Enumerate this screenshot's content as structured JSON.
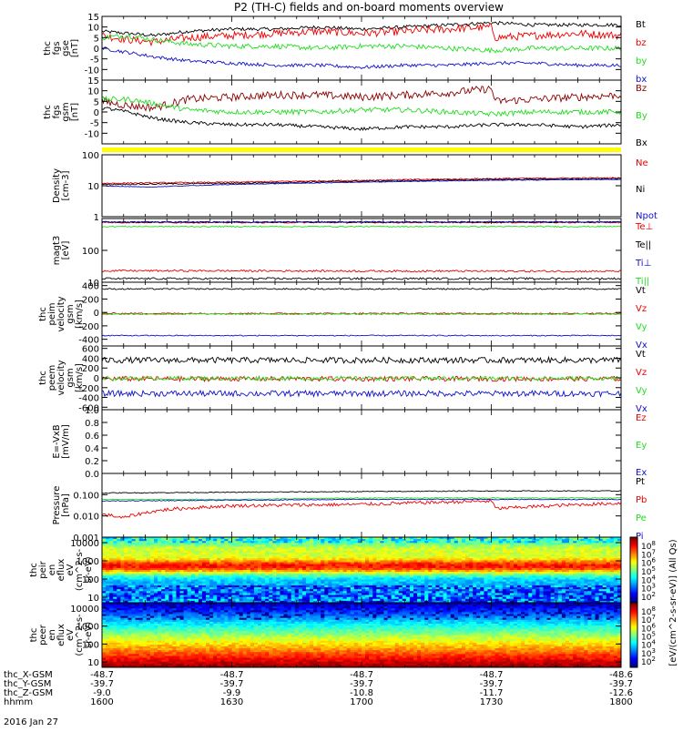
{
  "title": "P2 (TH-C) fields and on-board moments overview",
  "date_label": "2016 Jan 27",
  "colorbar_label": "[eV/(cm^2-s-sr-eV)] (All Qs)",
  "colors": {
    "black": "#000000",
    "red": "#ee0000",
    "green": "#22dd22",
    "blue": "#1010cc",
    "darkred": "#8b0000",
    "yellow": "#ffff00"
  },
  "chart_data": [
    {
      "id": "fgs_gse",
      "type": "line",
      "ylabel_lines": [
        "thc",
        "fgs",
        "gse",
        "[nT]"
      ],
      "ylim": [
        -15,
        15
      ],
      "ticks": [
        -10,
        -5,
        0,
        5,
        10,
        15
      ],
      "grid": false,
      "series": [
        {
          "name": "Bt",
          "color": "black",
          "x": [
            1600,
            1606,
            1612,
            1620,
            1630,
            1640,
            1650,
            1700,
            1710,
            1720,
            1730,
            1740,
            1750,
            1800
          ],
          "y": [
            8,
            7,
            6,
            8,
            9,
            9,
            10,
            9,
            10,
            11,
            12,
            11,
            11,
            11
          ],
          "noise": 0.8
        },
        {
          "name": "bz",
          "color": "red",
          "x": [
            1600,
            1606,
            1612,
            1620,
            1630,
            1640,
            1650,
            1700,
            1710,
            1720,
            1730,
            1731,
            1740,
            1750,
            1800
          ],
          "y": [
            6,
            4,
            3,
            5,
            6,
            7,
            8,
            7,
            8,
            9,
            10,
            5,
            6,
            7,
            6
          ],
          "noise": 1.8
        },
        {
          "name": "by",
          "color": "green",
          "x": [
            1600,
            1606,
            1612,
            1620,
            1630,
            1640,
            1650,
            1700,
            1710,
            1720,
            1730,
            1740,
            1800
          ],
          "y": [
            5,
            6,
            4,
            2,
            1,
            1,
            0,
            1,
            1,
            0,
            -1,
            0,
            0
          ],
          "noise": 1.2
        },
        {
          "name": "bx",
          "color": "blue",
          "x": [
            1600,
            1606,
            1612,
            1620,
            1630,
            1640,
            1650,
            1700,
            1710,
            1720,
            1730,
            1740,
            1750,
            1800
          ],
          "y": [
            0,
            -2,
            -4,
            -6,
            -7,
            -8,
            -8,
            -9,
            -8,
            -8,
            -7,
            -7,
            -8,
            -8
          ],
          "noise": 0.8
        }
      ]
    },
    {
      "id": "fgs_gsm",
      "type": "line",
      "ylabel_lines": [
        "thc",
        "fgs",
        "gsm",
        "[nT]"
      ],
      "ylim": [
        -15,
        15
      ],
      "ticks": [
        -10,
        -5,
        0,
        5,
        10,
        15
      ],
      "grid": false,
      "series": [
        {
          "name": "Bz",
          "color": "darkred",
          "x": [
            1600,
            1606,
            1612,
            1620,
            1630,
            1640,
            1650,
            1700,
            1710,
            1720,
            1730,
            1731,
            1740,
            1750,
            1800
          ],
          "y": [
            5,
            3,
            2,
            6,
            7,
            8,
            8,
            7,
            8,
            9,
            11,
            5,
            6,
            7,
            8
          ],
          "noise": 1.8
        },
        {
          "name": "By",
          "color": "green",
          "x": [
            1600,
            1606,
            1612,
            1620,
            1630,
            1640,
            1650,
            1700,
            1710,
            1720,
            1730,
            1740,
            1800
          ],
          "y": [
            6,
            6,
            4,
            1,
            0,
            0,
            0,
            1,
            1,
            0,
            -1,
            0,
            0
          ],
          "noise": 1.2
        },
        {
          "name": "Bx",
          "color": "black",
          "x": [
            1600,
            1606,
            1612,
            1620,
            1630,
            1640,
            1650,
            1700,
            1710,
            1720,
            1730,
            1740,
            1750,
            1800
          ],
          "y": [
            2,
            0,
            -3,
            -5,
            -6,
            -6,
            -7,
            -8,
            -7,
            -7,
            -6,
            -6,
            -7,
            -6
          ],
          "noise": 0.8
        }
      ]
    },
    {
      "id": "density",
      "type": "line",
      "scale": "log",
      "ylabel_lines": [
        "Density",
        "[cm-3]"
      ],
      "ylim": [
        1,
        100
      ],
      "ticks": [
        1,
        10,
        100
      ],
      "grid": false,
      "series": [
        {
          "name": "Ne",
          "color": "red",
          "x": [
            1600,
            1630,
            1700,
            1730,
            1800
          ],
          "y": [
            12,
            13,
            15,
            17,
            18
          ],
          "noise": 0.02
        },
        {
          "name": "Ni",
          "color": "black",
          "x": [
            1600,
            1630,
            1700,
            1730,
            1800
          ],
          "y": [
            11,
            12,
            14,
            16,
            17
          ],
          "noise": 0.02
        },
        {
          "name": "Npot",
          "color": "blue",
          "x": [
            1600,
            1610,
            1630,
            1700,
            1730,
            1800
          ],
          "y": [
            10,
            9,
            11,
            13,
            15,
            16
          ],
          "noise": 0.01
        }
      ]
    },
    {
      "id": "temperature",
      "type": "line",
      "scale": "log",
      "ylabel_lines": [
        "magt3",
        "[eV]"
      ],
      "ylim": [
        10,
        1000
      ],
      "ticks": [
        10,
        100
      ],
      "grid": false,
      "series": [
        {
          "name": "Te⊥",
          "color": "red",
          "x": [
            1600,
            1800
          ],
          "y": [
            750,
            750
          ],
          "noise": 0.02
        },
        {
          "name": "Te||",
          "color": "black",
          "x": [
            1600,
            1800
          ],
          "y": [
            770,
            770
          ],
          "noise": 0.02
        },
        {
          "name": "Ti⊥",
          "color": "blue",
          "x": [
            1600,
            1800
          ],
          "y": [
            780,
            780
          ],
          "noise": 0.02
        },
        {
          "name": "Ti||",
          "color": "green",
          "x": [
            1600,
            1800
          ],
          "y": [
            560,
            560
          ],
          "noise": 0.02
        },
        {
          "name": "Te⊥ low",
          "color": "red",
          "x": [
            1600,
            1800
          ],
          "y": [
            23,
            22
          ],
          "noise": 0.03
        },
        {
          "name": "Te|| low",
          "color": "black",
          "x": [
            1600,
            1800
          ],
          "y": [
            13,
            13
          ],
          "noise": 0.03
        }
      ]
    },
    {
      "id": "peim_velocity",
      "type": "line",
      "ylabel_lines": [
        "thc",
        "peim",
        "velocity",
        "gsm",
        "[km/s]"
      ],
      "ylim": [
        -500,
        450
      ],
      "ticks": [
        -400,
        -200,
        0,
        200,
        400
      ],
      "grid": false,
      "series": [
        {
          "name": "Vt",
          "color": "black",
          "x": [
            1600,
            1800
          ],
          "y": [
            350,
            350
          ],
          "noise": 10
        },
        {
          "name": "Vz",
          "color": "red",
          "x": [
            1600,
            1800
          ],
          "y": [
            -15,
            -15
          ],
          "noise": 10
        },
        {
          "name": "Vy",
          "color": "green",
          "x": [
            1600,
            1800
          ],
          "y": [
            -25,
            -25
          ],
          "noise": 10
        },
        {
          "name": "Vx",
          "color": "blue",
          "x": [
            1600,
            1800
          ],
          "y": [
            -345,
            -345
          ],
          "noise": 8
        }
      ]
    },
    {
      "id": "peem_velocity",
      "type": "line",
      "ylabel_lines": [
        "thc",
        "peem",
        "velocity",
        "gsm",
        "[km/s]"
      ],
      "ylim": [
        -650,
        650
      ],
      "ticks": [
        -600,
        -400,
        -200,
        0,
        200,
        400,
        600
      ],
      "grid": false,
      "series": [
        {
          "name": "Vt",
          "color": "black",
          "x": [
            1600,
            1800
          ],
          "y": [
            360,
            360
          ],
          "noise": 60
        },
        {
          "name": "Vz",
          "color": "red",
          "x": [
            1600,
            1800
          ],
          "y": [
            -20,
            -20
          ],
          "noise": 50
        },
        {
          "name": "Vy",
          "color": "green",
          "x": [
            1600,
            1800
          ],
          "y": [
            -10,
            -10
          ],
          "noise": 40
        },
        {
          "name": "Vx",
          "color": "blue",
          "x": [
            1600,
            1800
          ],
          "y": [
            -320,
            -320
          ],
          "noise": 60
        }
      ]
    },
    {
      "id": "efield",
      "type": "line",
      "ylabel_lines": [
        "E=-VxB",
        "[mV/m]"
      ],
      "ylim": [
        0,
        1
      ],
      "ticks": [
        0.0,
        0.2,
        0.4,
        0.6,
        0.8,
        1.0
      ],
      "tick_labels": [
        "0.0",
        "0.2",
        "0.4",
        "0.6",
        "0.8",
        "1.0"
      ],
      "grid": false,
      "series": [
        {
          "name": "Ez",
          "color": "red",
          "x": [],
          "y": []
        },
        {
          "name": "Ey",
          "color": "green",
          "x": [],
          "y": []
        },
        {
          "name": "Ex",
          "color": "blue",
          "x": [],
          "y": []
        }
      ]
    },
    {
      "id": "pressure",
      "type": "line",
      "scale": "log",
      "ylabel_lines": [
        "Pressure",
        "[nPa]"
      ],
      "ylim": [
        0.001,
        1
      ],
      "ticks": [
        0.001,
        0.01,
        0.1
      ],
      "tick_labels": [
        "0.001",
        "0.010",
        "0.100"
      ],
      "grid": false,
      "series": [
        {
          "name": "Pt",
          "color": "black",
          "x": [
            1600,
            1630,
            1700,
            1730,
            1800
          ],
          "y": [
            0.12,
            0.13,
            0.14,
            0.15,
            0.15
          ],
          "noise": 0.02
        },
        {
          "name": "Pb",
          "color": "red",
          "x": [
            1600,
            1605,
            1615,
            1630,
            1700,
            1730,
            1731,
            1800
          ],
          "y": [
            0.012,
            0.008,
            0.02,
            0.03,
            0.035,
            0.05,
            0.022,
            0.04
          ],
          "noise": 0.08
        },
        {
          "name": "Pe",
          "color": "green",
          "x": [
            1600,
            1630,
            1700,
            1730,
            1800
          ],
          "y": [
            0.06,
            0.06,
            0.07,
            0.07,
            0.07
          ],
          "noise": 0.02
        },
        {
          "name": "Pi",
          "color": "blue",
          "x": [
            1600,
            1630,
            1700,
            1730,
            1800
          ],
          "y": [
            0.05,
            0.055,
            0.06,
            0.06,
            0.06
          ],
          "noise": 0.02
        }
      ]
    },
    {
      "id": "peir_spectrogram",
      "type": "heatmap",
      "scale": "log",
      "ylabel_lines": [
        "thc",
        "peir",
        "en",
        "eflux",
        "eV",
        "(cm^2-s-",
        "sr-eV)"
      ],
      "ylim": [
        5,
        20000
      ],
      "ticks": [
        10,
        100,
        1000,
        10000
      ],
      "tick_labels": [
        "10",
        "100",
        "1000",
        "10000"
      ],
      "species": "ion",
      "colorbar_ticks": [
        "10^8",
        "10^7",
        "10^6",
        "10^5",
        "10^4",
        "10^3",
        "10^2"
      ]
    },
    {
      "id": "peer_spectrogram",
      "type": "heatmap",
      "scale": "log",
      "ylabel_lines": [
        "thc",
        "peer",
        "en",
        "eflux",
        "eV",
        "(cm^2-s-",
        "sr-eV)"
      ],
      "ylim": [
        5,
        20000
      ],
      "ticks": [
        10,
        100,
        1000,
        10000
      ],
      "tick_labels": [
        "10",
        "100",
        "1000",
        "10000"
      ],
      "species": "electron",
      "colorbar_ticks": [
        "10^8",
        "10^7",
        "10^6",
        "10^5",
        "10^4",
        "10^3",
        "10^2"
      ]
    }
  ],
  "x_axis": {
    "range": [
      1600,
      1800
    ],
    "rows": [
      {
        "label": "thc_X-GSM",
        "values": [
          "-48.7",
          "-48.7",
          "-48.7",
          "-48.7",
          "-48.6"
        ]
      },
      {
        "label": "thc_Y-GSM",
        "values": [
          "-39.7",
          "-39.7",
          "-39.7",
          "-39.7",
          "-39.7"
        ]
      },
      {
        "label": "thc_Z-GSM",
        "values": [
          "-9.0",
          "-9.9",
          "-10.8",
          "-11.7",
          "-12.6"
        ]
      },
      {
        "label": "hhmm",
        "values": [
          "1600",
          "1630",
          "1700",
          "1730",
          "1800"
        ]
      }
    ],
    "tick_times": [
      1600,
      1630,
      1700,
      1730,
      1800
    ]
  }
}
